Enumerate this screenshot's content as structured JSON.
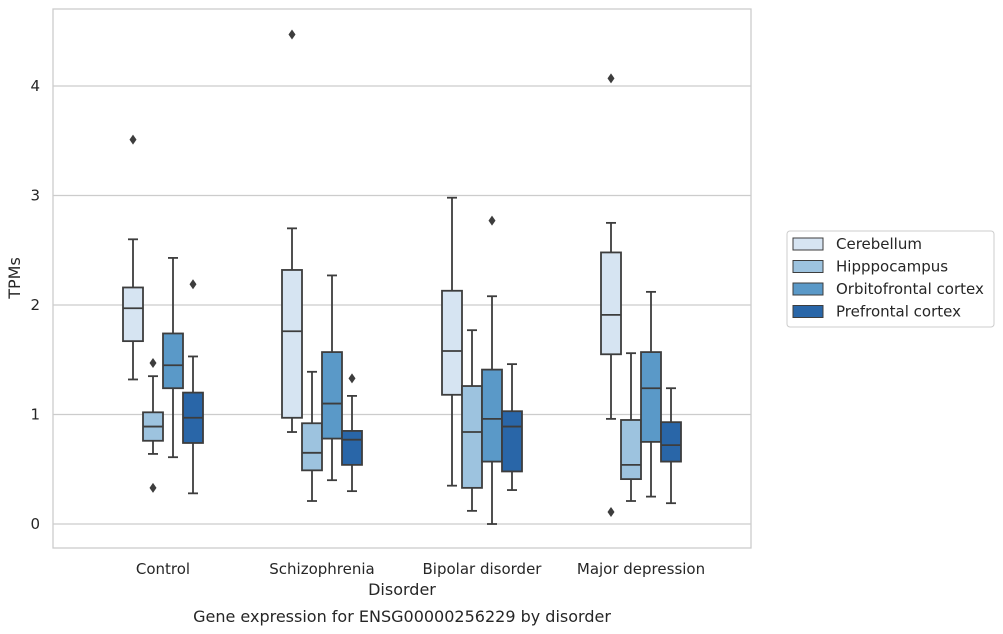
{
  "chart_data": {
    "type": "box",
    "title": "Gene expression for ENSG00000256229 by disorder",
    "xlabel": "Disorder",
    "ylabel": "TPMs",
    "categories": [
      "Control",
      "Schizophrenia",
      "Bipolar disorder",
      "Major depression"
    ],
    "ylim": [
      -0.2,
      4.7
    ],
    "yticks": [
      0,
      1,
      2,
      3,
      4
    ],
    "grid": true,
    "legend_position": "right",
    "series": [
      {
        "name": "Cerebellum",
        "color": "#d6e4f2",
        "boxes": [
          {
            "whislo": 1.32,
            "q1": 1.67,
            "med": 1.97,
            "q3": 2.16,
            "whishi": 2.6,
            "fliers": [
              3.51
            ]
          },
          {
            "whislo": 0.84,
            "q1": 0.97,
            "med": 1.76,
            "q3": 2.32,
            "whishi": 2.7,
            "fliers": [
              4.47
            ]
          },
          {
            "whislo": 0.35,
            "q1": 1.18,
            "med": 1.58,
            "q3": 2.13,
            "whishi": 2.98,
            "fliers": []
          },
          {
            "whislo": 0.96,
            "q1": 1.55,
            "med": 1.91,
            "q3": 2.48,
            "whishi": 2.75,
            "fliers": [
              4.07,
              0.11
            ]
          }
        ]
      },
      {
        "name": "Hipppocampus",
        "color": "#9dc3df",
        "boxes": [
          {
            "whislo": 0.64,
            "q1": 0.76,
            "med": 0.89,
            "q3": 1.02,
            "whishi": 1.35,
            "fliers": [
              1.47,
              0.33
            ]
          },
          {
            "whislo": 0.21,
            "q1": 0.49,
            "med": 0.65,
            "q3": 0.92,
            "whishi": 1.39,
            "fliers": []
          },
          {
            "whislo": 0.12,
            "q1": 0.33,
            "med": 0.84,
            "q3": 1.26,
            "whishi": 1.77,
            "fliers": []
          },
          {
            "whislo": 0.21,
            "q1": 0.41,
            "med": 0.54,
            "q3": 0.95,
            "whishi": 1.56,
            "fliers": []
          }
        ]
      },
      {
        "name": "Orbitofrontal cortex",
        "color": "#5a99c8",
        "boxes": [
          {
            "whislo": 0.61,
            "q1": 1.24,
            "med": 1.45,
            "q3": 1.74,
            "whishi": 2.43,
            "fliers": []
          },
          {
            "whislo": 0.4,
            "q1": 0.78,
            "med": 1.1,
            "q3": 1.57,
            "whishi": 2.27,
            "fliers": []
          },
          {
            "whislo": 0.0,
            "q1": 0.57,
            "med": 0.96,
            "q3": 1.41,
            "whishi": 2.08,
            "fliers": [
              2.77
            ]
          },
          {
            "whislo": 0.25,
            "q1": 0.75,
            "med": 1.24,
            "q3": 1.57,
            "whishi": 2.12,
            "fliers": []
          }
        ]
      },
      {
        "name": "Prefrontal cortex",
        "color": "#2966a8",
        "boxes": [
          {
            "whislo": 0.28,
            "q1": 0.74,
            "med": 0.97,
            "q3": 1.2,
            "whishi": 1.53,
            "fliers": [
              2.19
            ]
          },
          {
            "whislo": 0.3,
            "q1": 0.54,
            "med": 0.77,
            "q3": 0.85,
            "whishi": 1.17,
            "fliers": [
              1.33
            ]
          },
          {
            "whislo": 0.31,
            "q1": 0.48,
            "med": 0.89,
            "q3": 1.03,
            "whishi": 1.46,
            "fliers": []
          },
          {
            "whislo": 0.19,
            "q1": 0.57,
            "med": 0.72,
            "q3": 0.93,
            "whishi": 1.24,
            "fliers": []
          }
        ]
      }
    ]
  }
}
